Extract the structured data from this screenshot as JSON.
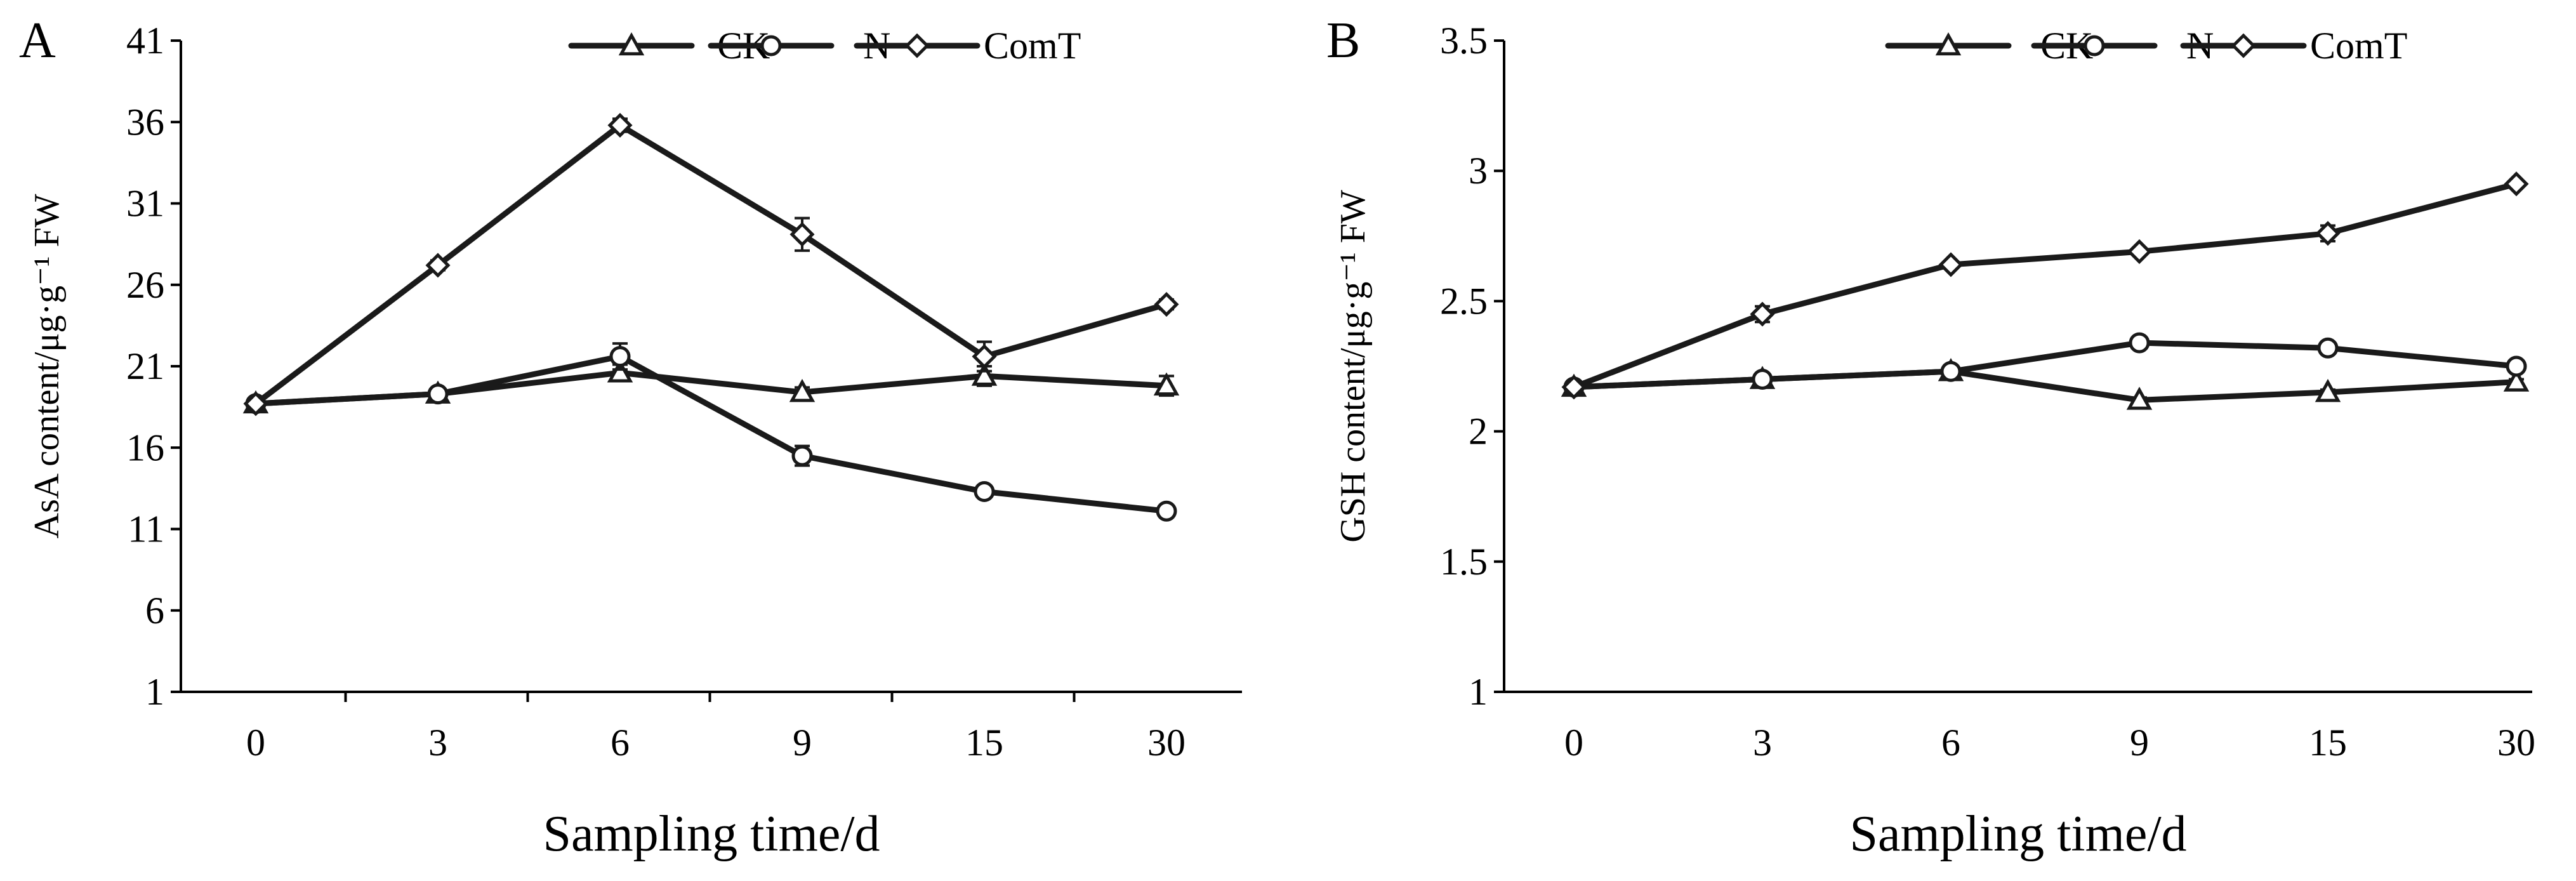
{
  "chart_data": [
    {
      "type": "line",
      "panel_label": "A",
      "categories": [
        "0",
        "3",
        "6",
        "9",
        "15",
        "30"
      ],
      "ylabel": "AsA content/μg·g⁻¹ FW",
      "xlabel": "Sampling time/d",
      "ylim": [
        1,
        41
      ],
      "yticks": [
        "1",
        "6",
        "11",
        "16",
        "21",
        "26",
        "31",
        "36",
        "41"
      ],
      "legend_position": "top-right",
      "series": [
        {
          "name": "CK",
          "marker": "triangle",
          "values": [
            18.7,
            19.3,
            20.6,
            19.4,
            20.4,
            19.8
          ],
          "errors": [
            0.3,
            0.3,
            0.5,
            0.3,
            0.6,
            0.6
          ]
        },
        {
          "name": "N",
          "marker": "circle",
          "values": [
            18.7,
            19.3,
            21.6,
            15.5,
            13.3,
            12.1
          ],
          "errors": [
            0.3,
            0.3,
            0.8,
            0.6,
            0.3,
            0.3
          ]
        },
        {
          "name": "ComT",
          "marker": "diamond",
          "values": [
            18.7,
            27.2,
            35.8,
            29.1,
            21.6,
            24.8
          ],
          "errors": [
            0.3,
            0.3,
            0.4,
            1.0,
            0.9,
            0.3
          ]
        }
      ]
    },
    {
      "type": "line",
      "panel_label": "B",
      "categories": [
        "0",
        "3",
        "6",
        "9",
        "15",
        "30"
      ],
      "ylabel": "GSH content/μg·g⁻¹ FW",
      "xlabel": "Sampling time/d",
      "ylim": [
        1,
        3.5
      ],
      "yticks": [
        "1",
        "1.5",
        "2",
        "2.5",
        "3",
        "3.5"
      ],
      "legend_position": "top-right",
      "series": [
        {
          "name": "CK",
          "marker": "triangle",
          "values": [
            2.17,
            2.2,
            2.23,
            2.12,
            2.15,
            2.19
          ],
          "errors": [
            0.01,
            0.01,
            0.01,
            0.01,
            0.01,
            0.01
          ]
        },
        {
          "name": "N",
          "marker": "circle",
          "values": [
            2.17,
            2.2,
            2.23,
            2.34,
            2.32,
            2.25
          ],
          "errors": [
            0.01,
            0.01,
            0.01,
            0.01,
            0.01,
            0.02
          ]
        },
        {
          "name": "ComT",
          "marker": "diamond",
          "values": [
            2.17,
            2.45,
            2.64,
            2.69,
            2.76,
            2.95
          ],
          "errors": [
            0.01,
            0.03,
            0.01,
            0.01,
            0.03,
            0.01
          ]
        }
      ]
    }
  ]
}
